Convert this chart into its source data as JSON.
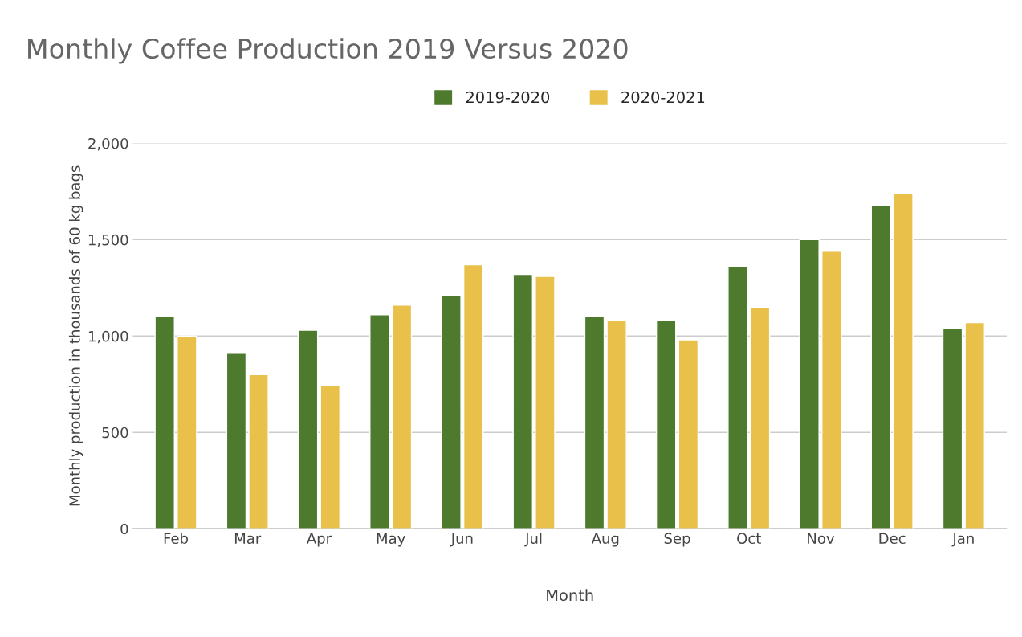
{
  "chart_data": {
    "type": "bar",
    "title": "Monthly Coffee Production 2019 Versus 2020",
    "xlabel": "Month",
    "ylabel": "Monthly production in thousands of 60 kg bags",
    "categories": [
      "Feb",
      "Mar",
      "Apr",
      "May",
      "Jun",
      "Jul",
      "Aug",
      "Sep",
      "Oct",
      "Nov",
      "Dec",
      "Jan"
    ],
    "series": [
      {
        "name": "2019-2020",
        "color": "#4e7a2d",
        "values": [
          1100,
          910,
          1030,
          1110,
          1210,
          1320,
          1100,
          1080,
          1360,
          1500,
          1680,
          1040
        ]
      },
      {
        "name": "2020-2021",
        "color": "#e8c04a",
        "values": [
          1000,
          800,
          745,
          1160,
          1370,
          1310,
          1080,
          980,
          1150,
          1440,
          1740,
          1070
        ]
      }
    ],
    "ylim": [
      0,
      2000
    ],
    "yticks": [
      0,
      {
        "value": 500,
        "label": "500"
      },
      {
        "value": 1000,
        "label": "1,000"
      },
      {
        "value": 1500,
        "label": "1,500"
      },
      {
        "value": 2000,
        "label": "2,000"
      }
    ],
    "grid": "y",
    "legend": "top"
  }
}
